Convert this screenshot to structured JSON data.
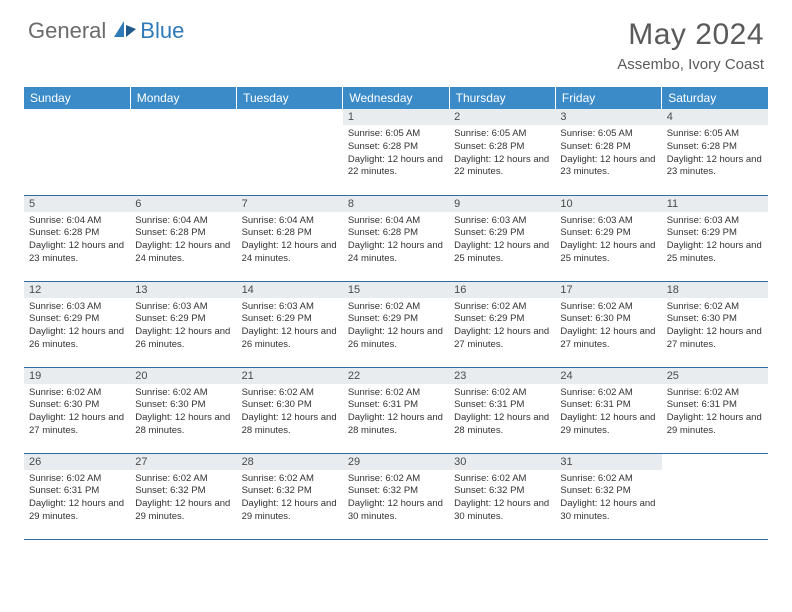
{
  "logo": {
    "text1": "General",
    "text2": "Blue"
  },
  "title": "May 2024",
  "location": "Assembo, Ivory Coast",
  "colors": {
    "header_bg": "#3b8bc9",
    "header_text": "#ffffff",
    "daynum_bg": "#e8ecef",
    "border": "#2f6b9e",
    "logo_gray": "#6a6a6a",
    "logo_blue": "#2f7ab8",
    "title_color": "#5a5a5a"
  },
  "weekdays": [
    "Sunday",
    "Monday",
    "Tuesday",
    "Wednesday",
    "Thursday",
    "Friday",
    "Saturday"
  ],
  "weeks": [
    [
      {
        "n": "",
        "sr": "",
        "ss": "",
        "dl": ""
      },
      {
        "n": "",
        "sr": "",
        "ss": "",
        "dl": ""
      },
      {
        "n": "",
        "sr": "",
        "ss": "",
        "dl": ""
      },
      {
        "n": "1",
        "sr": "6:05 AM",
        "ss": "6:28 PM",
        "dl": "12 hours and 22 minutes."
      },
      {
        "n": "2",
        "sr": "6:05 AM",
        "ss": "6:28 PM",
        "dl": "12 hours and 22 minutes."
      },
      {
        "n": "3",
        "sr": "6:05 AM",
        "ss": "6:28 PM",
        "dl": "12 hours and 23 minutes."
      },
      {
        "n": "4",
        "sr": "6:05 AM",
        "ss": "6:28 PM",
        "dl": "12 hours and 23 minutes."
      }
    ],
    [
      {
        "n": "5",
        "sr": "6:04 AM",
        "ss": "6:28 PM",
        "dl": "12 hours and 23 minutes."
      },
      {
        "n": "6",
        "sr": "6:04 AM",
        "ss": "6:28 PM",
        "dl": "12 hours and 24 minutes."
      },
      {
        "n": "7",
        "sr": "6:04 AM",
        "ss": "6:28 PM",
        "dl": "12 hours and 24 minutes."
      },
      {
        "n": "8",
        "sr": "6:04 AM",
        "ss": "6:28 PM",
        "dl": "12 hours and 24 minutes."
      },
      {
        "n": "9",
        "sr": "6:03 AM",
        "ss": "6:29 PM",
        "dl": "12 hours and 25 minutes."
      },
      {
        "n": "10",
        "sr": "6:03 AM",
        "ss": "6:29 PM",
        "dl": "12 hours and 25 minutes."
      },
      {
        "n": "11",
        "sr": "6:03 AM",
        "ss": "6:29 PM",
        "dl": "12 hours and 25 minutes."
      }
    ],
    [
      {
        "n": "12",
        "sr": "6:03 AM",
        "ss": "6:29 PM",
        "dl": "12 hours and 26 minutes."
      },
      {
        "n": "13",
        "sr": "6:03 AM",
        "ss": "6:29 PM",
        "dl": "12 hours and 26 minutes."
      },
      {
        "n": "14",
        "sr": "6:03 AM",
        "ss": "6:29 PM",
        "dl": "12 hours and 26 minutes."
      },
      {
        "n": "15",
        "sr": "6:02 AM",
        "ss": "6:29 PM",
        "dl": "12 hours and 26 minutes."
      },
      {
        "n": "16",
        "sr": "6:02 AM",
        "ss": "6:29 PM",
        "dl": "12 hours and 27 minutes."
      },
      {
        "n": "17",
        "sr": "6:02 AM",
        "ss": "6:30 PM",
        "dl": "12 hours and 27 minutes."
      },
      {
        "n": "18",
        "sr": "6:02 AM",
        "ss": "6:30 PM",
        "dl": "12 hours and 27 minutes."
      }
    ],
    [
      {
        "n": "19",
        "sr": "6:02 AM",
        "ss": "6:30 PM",
        "dl": "12 hours and 27 minutes."
      },
      {
        "n": "20",
        "sr": "6:02 AM",
        "ss": "6:30 PM",
        "dl": "12 hours and 28 minutes."
      },
      {
        "n": "21",
        "sr": "6:02 AM",
        "ss": "6:30 PM",
        "dl": "12 hours and 28 minutes."
      },
      {
        "n": "22",
        "sr": "6:02 AM",
        "ss": "6:31 PM",
        "dl": "12 hours and 28 minutes."
      },
      {
        "n": "23",
        "sr": "6:02 AM",
        "ss": "6:31 PM",
        "dl": "12 hours and 28 minutes."
      },
      {
        "n": "24",
        "sr": "6:02 AM",
        "ss": "6:31 PM",
        "dl": "12 hours and 29 minutes."
      },
      {
        "n": "25",
        "sr": "6:02 AM",
        "ss": "6:31 PM",
        "dl": "12 hours and 29 minutes."
      }
    ],
    [
      {
        "n": "26",
        "sr": "6:02 AM",
        "ss": "6:31 PM",
        "dl": "12 hours and 29 minutes."
      },
      {
        "n": "27",
        "sr": "6:02 AM",
        "ss": "6:32 PM",
        "dl": "12 hours and 29 minutes."
      },
      {
        "n": "28",
        "sr": "6:02 AM",
        "ss": "6:32 PM",
        "dl": "12 hours and 29 minutes."
      },
      {
        "n": "29",
        "sr": "6:02 AM",
        "ss": "6:32 PM",
        "dl": "12 hours and 30 minutes."
      },
      {
        "n": "30",
        "sr": "6:02 AM",
        "ss": "6:32 PM",
        "dl": "12 hours and 30 minutes."
      },
      {
        "n": "31",
        "sr": "6:02 AM",
        "ss": "6:32 PM",
        "dl": "12 hours and 30 minutes."
      },
      {
        "n": "",
        "sr": "",
        "ss": "",
        "dl": ""
      }
    ]
  ],
  "labels": {
    "sunrise": "Sunrise:",
    "sunset": "Sunset:",
    "daylight": "Daylight:"
  }
}
